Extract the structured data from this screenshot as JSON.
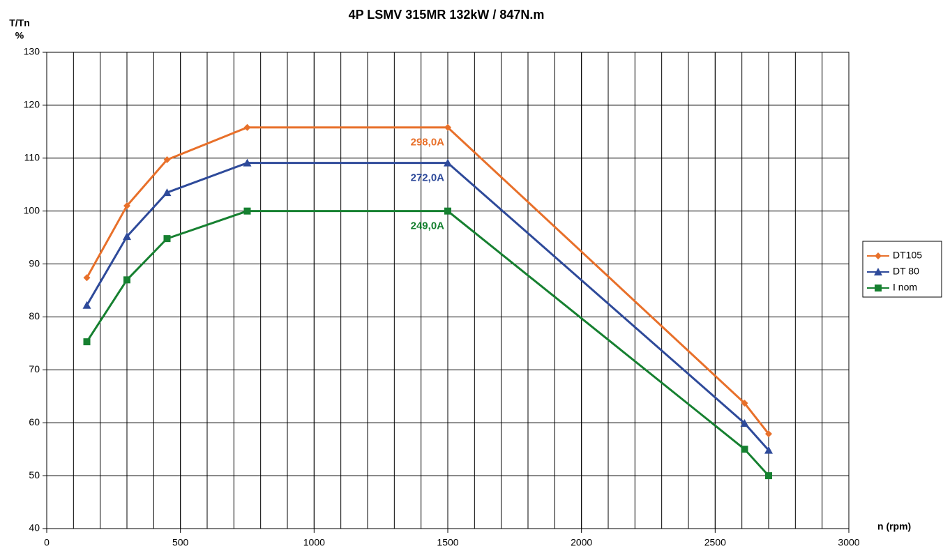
{
  "chart_data": {
    "type": "line",
    "title": "4P LSMV 315MR 132kW / 847N.m",
    "ylabel": [
      "T/Tn",
      "%"
    ],
    "xlabel": "n (rpm)",
    "x": [
      150,
      300,
      450,
      750,
      1500,
      2610,
      2700
    ],
    "series": [
      {
        "name": "DT105",
        "color": "#e8702a",
        "marker": "diamond",
        "values": [
          87.4,
          101,
          109.7,
          115.8,
          115.8,
          63.7,
          57.9
        ],
        "annotation": "298,0A"
      },
      {
        "name": "DT 80",
        "color": "#2e4a9a",
        "marker": "triangle",
        "values": [
          82.2,
          95.2,
          103.5,
          109.1,
          109.1,
          59.9,
          54.8
        ],
        "annotation": "272,0A"
      },
      {
        "name": "I nom",
        "color": "#168030",
        "marker": "square",
        "values": [
          75.3,
          87.0,
          94.8,
          100,
          100,
          55.0,
          50.0
        ],
        "annotation": "249,0A"
      }
    ],
    "xlim": [
      0,
      3000
    ],
    "xticks": [
      0,
      500,
      1000,
      1500,
      2000,
      2500,
      3000
    ],
    "x_minor_grid_step": 100,
    "ylim": [
      40,
      130
    ],
    "yticks": [
      40,
      50,
      60,
      70,
      80,
      90,
      100,
      110,
      120,
      130
    ],
    "grid": true,
    "legend": "right"
  }
}
